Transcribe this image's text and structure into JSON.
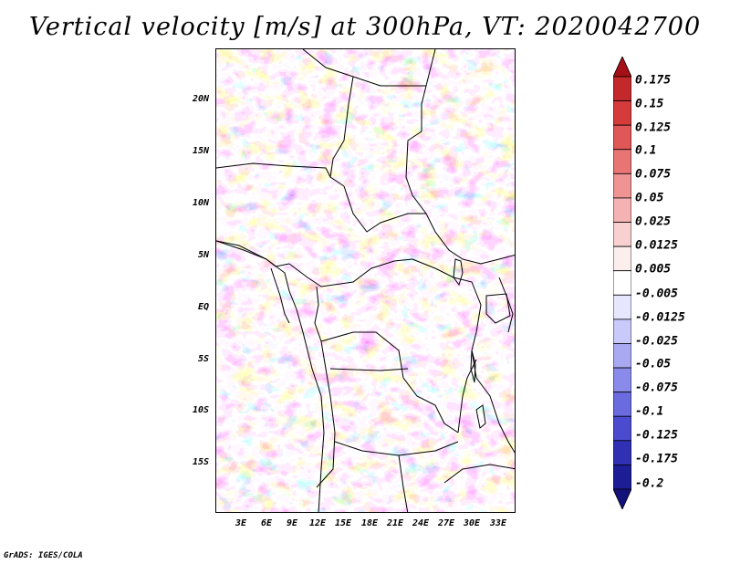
{
  "title": "Vertical velocity [m/s] at 300hPa, VT: 2020042700",
  "credit": "GrADS: IGES/COLA",
  "axes": {
    "lat_labels": [
      "20N",
      "15N",
      "10N",
      "5N",
      "EQ",
      "5S",
      "10S",
      "15S"
    ],
    "lon_labels": [
      "3E",
      "6E",
      "9E",
      "12E",
      "15E",
      "18E",
      "21E",
      "24E",
      "27E",
      "30E",
      "33E"
    ]
  },
  "colorbar": {
    "labels": [
      "0.175",
      "0.15",
      "0.125",
      "0.1",
      "0.075",
      "0.05",
      "0.025",
      "0.0125",
      "0.005",
      "-0.005",
      "-0.0125",
      "-0.025",
      "-0.05",
      "-0.075",
      "-0.1",
      "-0.125",
      "-0.175",
      "-0.2"
    ],
    "colors": [
      "#a50f15",
      "#c3282b",
      "#d53b3b",
      "#e05757",
      "#e87474",
      "#ef9393",
      "#f5b2b2",
      "#f9d0d0",
      "#fdeeee",
      "#ffffff",
      "#e6e6ff",
      "#c9c9fa",
      "#a9a9f2",
      "#8a8aea",
      "#6b6be0",
      "#4b4bd0",
      "#3030b5",
      "#1d1d96",
      "#12127a"
    ]
  }
}
